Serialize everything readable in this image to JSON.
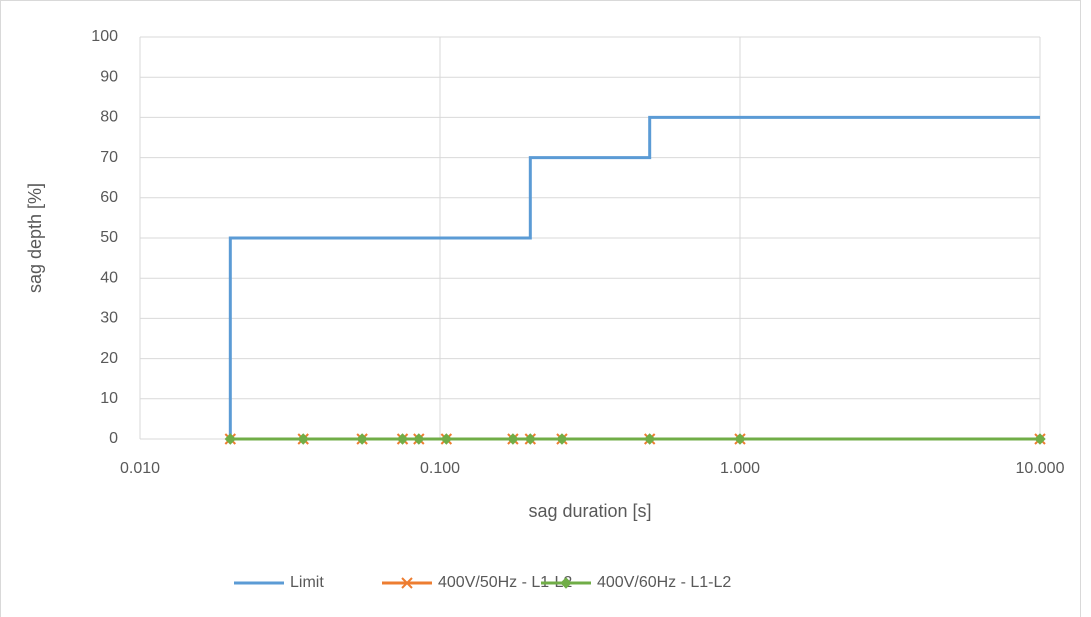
{
  "chart_data": {
    "type": "line",
    "xlabel": "sag duration [s]",
    "ylabel": "sag depth [%]",
    "xscale": "log",
    "xlim": [
      0.01,
      10
    ],
    "xticks": [
      {
        "value": 0.01,
        "label": "0.010"
      },
      {
        "value": 0.1,
        "label": "0.100"
      },
      {
        "value": 1,
        "label": "1.000"
      },
      {
        "value": 10,
        "label": "10.000"
      }
    ],
    "ylim": [
      0,
      100
    ],
    "yticks": [
      0,
      10,
      20,
      30,
      40,
      50,
      60,
      70,
      80,
      90,
      100
    ],
    "grid": true,
    "legend": "bottom",
    "series": [
      {
        "name": "Limit",
        "color": "#5b9bd5",
        "marker": "none",
        "x": [
          0.02,
          0.02,
          0.2,
          0.2,
          0.5,
          0.5,
          10
        ],
        "values": [
          0,
          50,
          50,
          70,
          70,
          80,
          80
        ]
      },
      {
        "name": "400V/50Hz - L1-L2",
        "color": "#ed7d31",
        "marker": "x",
        "x": [
          0.02,
          0.035,
          0.055,
          0.075,
          0.085,
          0.105,
          0.175,
          0.2,
          0.255,
          0.5,
          1,
          10
        ],
        "values": [
          0,
          0,
          0,
          0,
          0,
          0,
          0,
          0,
          0,
          0,
          0,
          0
        ]
      },
      {
        "name": "400V/60Hz - L1-L2",
        "color": "#70ad47",
        "marker": "diamond",
        "x": [
          0.02,
          0.035,
          0.055,
          0.075,
          0.085,
          0.105,
          0.175,
          0.2,
          0.255,
          0.5,
          1,
          10
        ],
        "values": [
          0,
          0,
          0,
          0,
          0,
          0,
          0,
          0,
          0,
          0,
          0,
          0
        ]
      }
    ]
  }
}
